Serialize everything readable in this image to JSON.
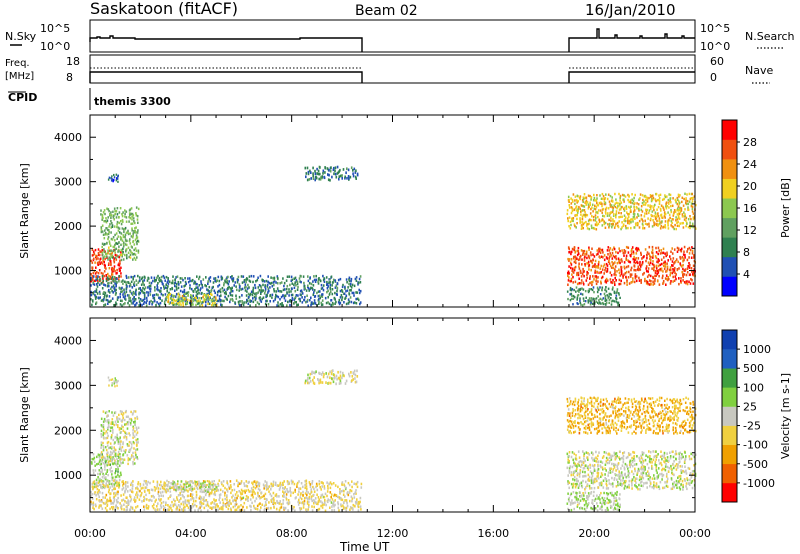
{
  "header": {
    "station": "Saskatoon (fitACF)",
    "beam": "Beam 02",
    "date": "16/Jan/2010"
  },
  "top_panels": {
    "nsky": {
      "label": "N.Sky",
      "top_tick": "10^5",
      "bottom_tick": "10^0"
    },
    "nsearch": {
      "label": "N.Search",
      "top_tick": "10^5",
      "bottom_tick": "10^0"
    },
    "freq": {
      "label": "Freq.",
      "unit": "[MHz]",
      "top_tick": "18",
      "bottom_tick": "8"
    },
    "nave": {
      "label": "Nave",
      "top_tick": "60",
      "bottom_tick": "0"
    },
    "cpid": {
      "label": "CPID",
      "value": "themis 3300"
    }
  },
  "chart_data": [
    {
      "type": "heatmap",
      "quantity": "Power",
      "xlabel": "Time UT",
      "ylabel": "Slant Range [km]",
      "xticks": [
        "00:00",
        "04:00",
        "08:00",
        "12:00",
        "16:00",
        "20:00",
        "00:00"
      ],
      "xlim_hours": [
        0,
        24
      ],
      "yticks": [
        1000,
        2000,
        3000,
        4000
      ],
      "ylim": [
        180,
        4500
      ],
      "colorbar": {
        "label": "Power [dB]",
        "ticks": [
          "4",
          "8",
          "12",
          "16",
          "20",
          "24",
          "28"
        ],
        "range": [
          0,
          32
        ]
      },
      "data_intervals_hours": [
        [
          0,
          10.75
        ],
        [
          18.9,
          24
        ]
      ],
      "echo_regions": [
        {
          "t0": 0.0,
          "t1": 1.2,
          "r0": 700,
          "r1": 1450,
          "level": 28
        },
        {
          "t0": 0.4,
          "t1": 1.9,
          "r0": 1200,
          "r1": 2400,
          "level": 14
        },
        {
          "t0": 0.7,
          "t1": 1.1,
          "r0": 2950,
          "r1": 3150,
          "level": 6
        },
        {
          "t0": 0.0,
          "t1": 10.75,
          "r0": 180,
          "r1": 850,
          "level": 8
        },
        {
          "t0": 3.0,
          "t1": 5.0,
          "r0": 180,
          "r1": 450,
          "level": 18
        },
        {
          "t0": 8.5,
          "t1": 10.6,
          "r0": 3000,
          "r1": 3300,
          "level": 8
        },
        {
          "t0": 18.9,
          "t1": 24.0,
          "r0": 650,
          "r1": 1500,
          "level": 27
        },
        {
          "t0": 18.9,
          "t1": 24.0,
          "r0": 1900,
          "r1": 2700,
          "level": 20
        },
        {
          "t0": 18.9,
          "t1": 21.0,
          "r0": 180,
          "r1": 600,
          "level": 10
        }
      ]
    },
    {
      "type": "heatmap",
      "quantity": "Velocity",
      "xlabel": "Time UT",
      "ylabel": "Slant Range [km]",
      "xticks": [
        "00:00",
        "04:00",
        "08:00",
        "12:00",
        "16:00",
        "20:00",
        "00:00"
      ],
      "xlim_hours": [
        0,
        24
      ],
      "yticks": [
        1000,
        2000,
        3000,
        4000
      ],
      "ylim": [
        180,
        4500
      ],
      "colorbar": {
        "label": "Velocity [m s-1]",
        "ticks": [
          "1000",
          "500",
          "100",
          "25",
          "-25",
          "-100",
          "-500",
          "-1000"
        ],
        "range": [
          -1200,
          1200
        ]
      },
      "data_intervals_hours": [
        [
          0,
          10.75
        ],
        [
          18.9,
          24
        ]
      ],
      "echo_regions": [
        {
          "t0": 0.0,
          "t1": 1.2,
          "r0": 700,
          "r1": 1450,
          "level": 150
        },
        {
          "t0": 0.4,
          "t1": 1.9,
          "r0": 1200,
          "r1": 2400,
          "level": 0
        },
        {
          "t0": 0.7,
          "t1": 1.1,
          "r0": 2950,
          "r1": 3150,
          "level": 0
        },
        {
          "t0": 0.0,
          "t1": 10.75,
          "r0": 180,
          "r1": 850,
          "level": -150
        },
        {
          "t0": 3.0,
          "t1": 5.0,
          "r0": 600,
          "r1": 850,
          "level": 80
        },
        {
          "t0": 8.5,
          "t1": 10.6,
          "r0": 3000,
          "r1": 3300,
          "level": -60
        },
        {
          "t0": 18.9,
          "t1": 24.0,
          "r0": 650,
          "r1": 1500,
          "level": 0
        },
        {
          "t0": 18.9,
          "t1": 24.0,
          "r0": 1900,
          "r1": 2700,
          "level": -400
        },
        {
          "t0": 18.9,
          "t1": 21.0,
          "r0": 180,
          "r1": 600,
          "level": 120
        }
      ]
    }
  ],
  "colors": {
    "power": [
      "#0000ff",
      "#2050b4",
      "#2f8050",
      "#60a060",
      "#8cc850",
      "#f0d020",
      "#f09010",
      "#f05010",
      "#ff0000"
    ],
    "velocity": [
      "#ff0000",
      "#f06000",
      "#f0a000",
      "#f0d040",
      "#c8c8c0",
      "#80d040",
      "#40a040",
      "#2060c0",
      "#1040b0"
    ]
  }
}
